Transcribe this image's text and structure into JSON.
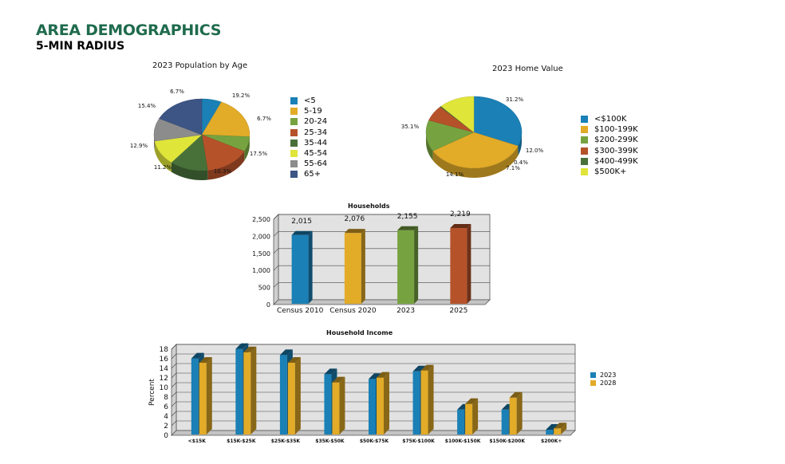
{
  "header": {
    "title": "AREA DEMOGRAPHICS",
    "subtitle": "5-MIN RADIUS"
  },
  "colors": {
    "title_green": "#1f6b4d",
    "age_palette": [
      "#1a80b6",
      "#e2ab28",
      "#76a33f",
      "#b6522a",
      "#48713a",
      "#e0e53a",
      "#8c8c8c",
      "#3c5585"
    ],
    "home_palette": [
      "#1a80b6",
      "#e2ab28",
      "#76a33f",
      "#b6522a",
      "#48713a",
      "#e0e53a"
    ],
    "households_palette": [
      "#1a80b6",
      "#e2ab28",
      "#76a33f",
      "#b6522a"
    ],
    "income_series": [
      "#1a80b6",
      "#e2ab28"
    ]
  },
  "chart_data": [
    {
      "id": "age",
      "type": "pie",
      "title": "2023 Population by Age",
      "labels": [
        "<5",
        "5-19",
        "20-24",
        "25-34",
        "35-44",
        "45-54",
        "55-64",
        "65+"
      ],
      "values": [
        6.7,
        19.2,
        6.7,
        15.4,
        12.9,
        11.2,
        10.3,
        17.5
      ],
      "value_labels": [
        "6.7%",
        "19.2%",
        "6.7%",
        "15.4%",
        "12.9%",
        "11.2%",
        "10.3%",
        "17.5%"
      ],
      "legend_position": "right"
    },
    {
      "id": "home",
      "type": "pie",
      "title": "2023 Home Value",
      "labels": [
        "<$100K",
        "$100-199K",
        "$200-299K",
        "$300-399K",
        "$400-499K",
        "$500K+"
      ],
      "values": [
        31.2,
        35.1,
        14.1,
        7.1,
        0.4,
        12.0
      ],
      "value_labels": [
        "31.2%",
        "35.1%",
        "14.1%",
        "7.1%",
        "0.4%",
        "12.0%"
      ],
      "legend_position": "right"
    },
    {
      "id": "households",
      "type": "bar",
      "title": "Households",
      "categories": [
        "Census 2010",
        "Census 2020",
        "2023",
        "2025"
      ],
      "values": [
        2015,
        2076,
        2155,
        2219
      ],
      "value_labels": [
        "2,015",
        "2,076",
        "2,155",
        "2,219"
      ],
      "ylim": [
        0,
        2500
      ],
      "yticks": [
        "0",
        "500",
        "1,000",
        "1,500",
        "2,000",
        "2,500"
      ],
      "grid": true
    },
    {
      "id": "income",
      "type": "bar",
      "title": "Household Income",
      "ylabel": "Percent",
      "categories": [
        "<$15K",
        "$15K-$25K",
        "$25K-$35K",
        "$35K-$50K",
        "$50K-$75K",
        "$75K-$100K",
        "$100K-$150K",
        "$150K-$200K",
        "$200K+"
      ],
      "series": [
        {
          "name": "2023",
          "values": [
            15.9,
            17.9,
            16.6,
            12.6,
            11.6,
            13.2,
            5.2,
            5.2,
            1.0
          ]
        },
        {
          "name": "2028",
          "values": [
            15.0,
            17.2,
            15.0,
            10.9,
            11.9,
            13.4,
            6.4,
            7.7,
            1.3
          ]
        }
      ],
      "ylim": [
        0,
        18
      ],
      "yticks": [
        "0",
        "2",
        "4",
        "6",
        "8",
        "10",
        "12",
        "14",
        "16",
        "18"
      ],
      "grid": true,
      "legend_position": "right"
    }
  ]
}
